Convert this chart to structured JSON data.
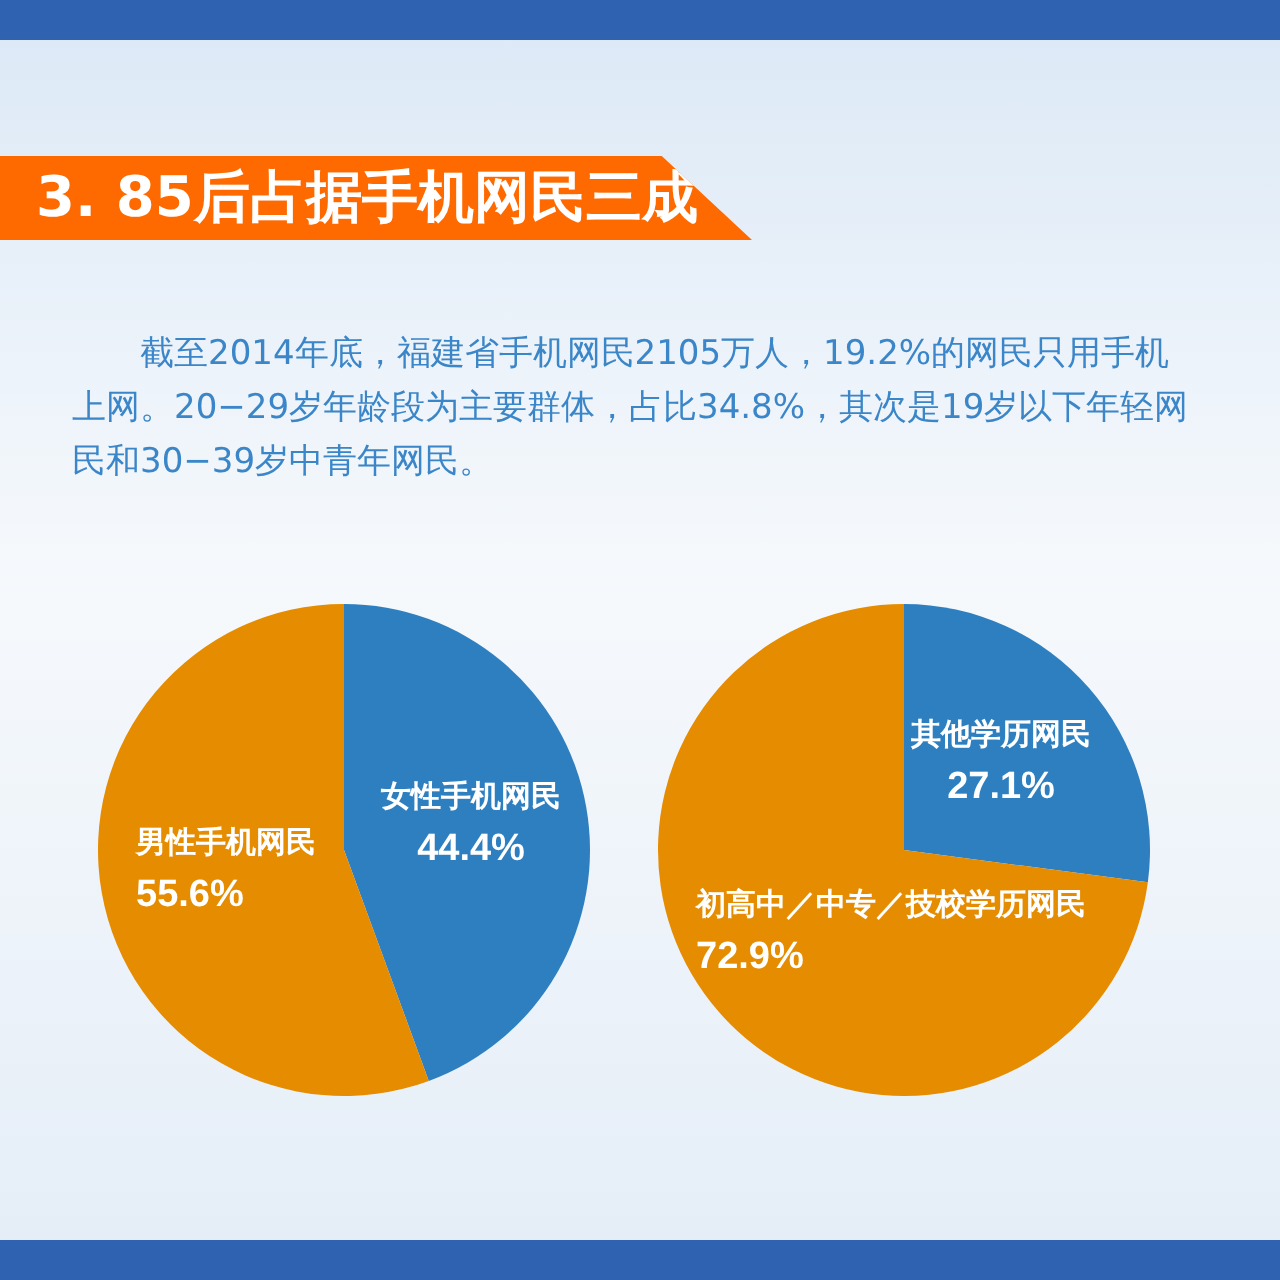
{
  "chart_data": [
    {
      "type": "pie",
      "title": "3.  85后占据手机网民三成",
      "subtitle": "截至2014年底，福建省手机网民2105万人，19.2%的网民只用手机上网。20−29岁年龄段为主要群体，占比34.8%，其次是19岁以下年轻网民和30−39岁中青年网民。",
      "categories": [
        "女性手机网民",
        "男性手机网民"
      ],
      "values": [
        44.4,
        55.6
      ],
      "colors": [
        "#2e7fc0",
        "#e58c00"
      ],
      "value_labels": [
        "44.4%",
        "55.6%"
      ]
    },
    {
      "type": "pie",
      "categories": [
        "其他学历网民",
        "初高中／中专／技校学历网民"
      ],
      "values": [
        27.1,
        72.9
      ],
      "colors": [
        "#2e7fc0",
        "#e58c00"
      ],
      "value_labels": [
        "27.1%",
        "72.9%"
      ]
    }
  ]
}
